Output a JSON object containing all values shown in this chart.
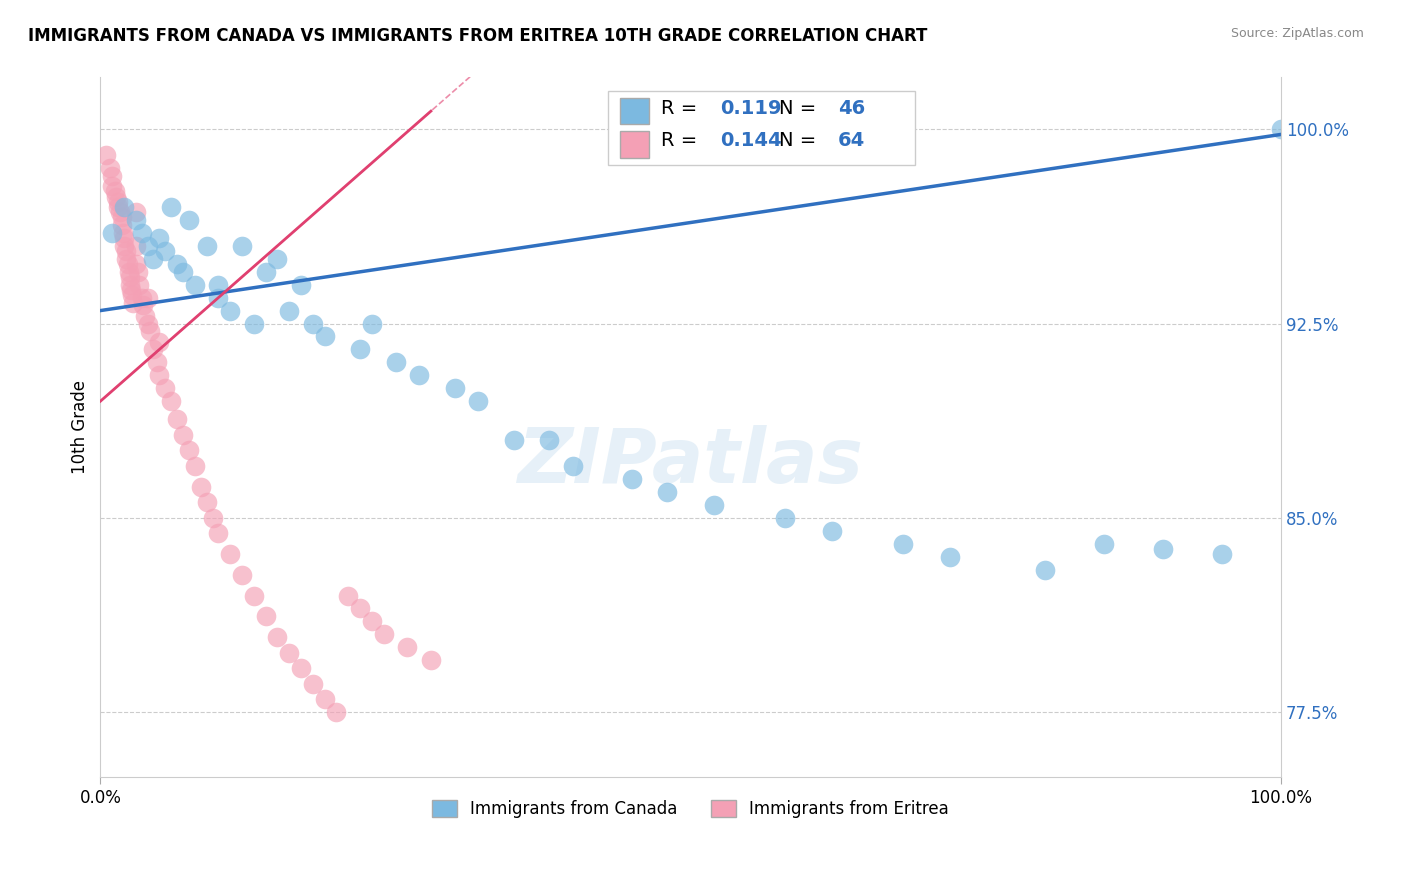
{
  "title": "IMMIGRANTS FROM CANADA VS IMMIGRANTS FROM ERITREA 10TH GRADE CORRELATION CHART",
  "source": "Source: ZipAtlas.com",
  "ylabel": "10th Grade",
  "legend_entries": [
    "Immigrants from Canada",
    "Immigrants from Eritrea"
  ],
  "R_canada": 0.119,
  "N_canada": 46,
  "R_eritrea": 0.144,
  "N_eritrea": 64,
  "color_canada": "#7cb9e0",
  "color_eritrea": "#f4a0b5",
  "color_trendline_canada": "#3070c0",
  "color_trendline_eritrea": "#e04070",
  "color_grid": "#cccccc",
  "xlim": [
    0.0,
    1.0
  ],
  "ylim": [
    0.75,
    1.02
  ],
  "yticks": [
    0.775,
    0.85,
    0.925,
    1.0
  ],
  "ytick_labels": [
    "77.5%",
    "85.0%",
    "92.5%",
    "100.0%"
  ],
  "canada_x": [
    0.01,
    0.02,
    0.03,
    0.035,
    0.04,
    0.045,
    0.05,
    0.055,
    0.06,
    0.065,
    0.07,
    0.075,
    0.08,
    0.09,
    0.1,
    0.1,
    0.11,
    0.12,
    0.13,
    0.14,
    0.15,
    0.16,
    0.17,
    0.18,
    0.19,
    0.22,
    0.23,
    0.25,
    0.27,
    0.3,
    0.32,
    0.35,
    0.38,
    0.4,
    0.45,
    0.48,
    0.52,
    0.58,
    0.62,
    0.68,
    0.72,
    0.8,
    0.85,
    0.9,
    0.95,
    1.0
  ],
  "canada_y": [
    0.96,
    0.97,
    0.965,
    0.96,
    0.955,
    0.95,
    0.958,
    0.953,
    0.97,
    0.948,
    0.945,
    0.965,
    0.94,
    0.955,
    0.94,
    0.935,
    0.93,
    0.955,
    0.925,
    0.945,
    0.95,
    0.93,
    0.94,
    0.925,
    0.92,
    0.915,
    0.925,
    0.91,
    0.905,
    0.9,
    0.895,
    0.88,
    0.88,
    0.87,
    0.865,
    0.86,
    0.855,
    0.85,
    0.845,
    0.84,
    0.835,
    0.83,
    0.84,
    0.838,
    0.836,
    1.0
  ],
  "eritrea_x": [
    0.005,
    0.008,
    0.01,
    0.01,
    0.012,
    0.013,
    0.015,
    0.015,
    0.017,
    0.018,
    0.018,
    0.019,
    0.02,
    0.02,
    0.022,
    0.022,
    0.023,
    0.024,
    0.025,
    0.025,
    0.026,
    0.027,
    0.028,
    0.03,
    0.03,
    0.032,
    0.033,
    0.035,
    0.036,
    0.038,
    0.04,
    0.042,
    0.045,
    0.048,
    0.05,
    0.055,
    0.06,
    0.065,
    0.07,
    0.075,
    0.08,
    0.085,
    0.09,
    0.095,
    0.1,
    0.11,
    0.12,
    0.13,
    0.14,
    0.15,
    0.16,
    0.17,
    0.18,
    0.19,
    0.2,
    0.21,
    0.22,
    0.23,
    0.24,
    0.26,
    0.28,
    0.03,
    0.04,
    0.05
  ],
  "eritrea_y": [
    0.99,
    0.985,
    0.982,
    0.978,
    0.976,
    0.974,
    0.972,
    0.97,
    0.968,
    0.966,
    0.963,
    0.96,
    0.958,
    0.955,
    0.953,
    0.95,
    0.948,
    0.945,
    0.943,
    0.94,
    0.938,
    0.936,
    0.933,
    0.955,
    0.948,
    0.945,
    0.94,
    0.935,
    0.932,
    0.928,
    0.925,
    0.922,
    0.915,
    0.91,
    0.905,
    0.9,
    0.895,
    0.888,
    0.882,
    0.876,
    0.87,
    0.862,
    0.856,
    0.85,
    0.844,
    0.836,
    0.828,
    0.82,
    0.812,
    0.804,
    0.798,
    0.792,
    0.786,
    0.78,
    0.775,
    0.82,
    0.815,
    0.81,
    0.805,
    0.8,
    0.795,
    0.968,
    0.935,
    0.918
  ]
}
